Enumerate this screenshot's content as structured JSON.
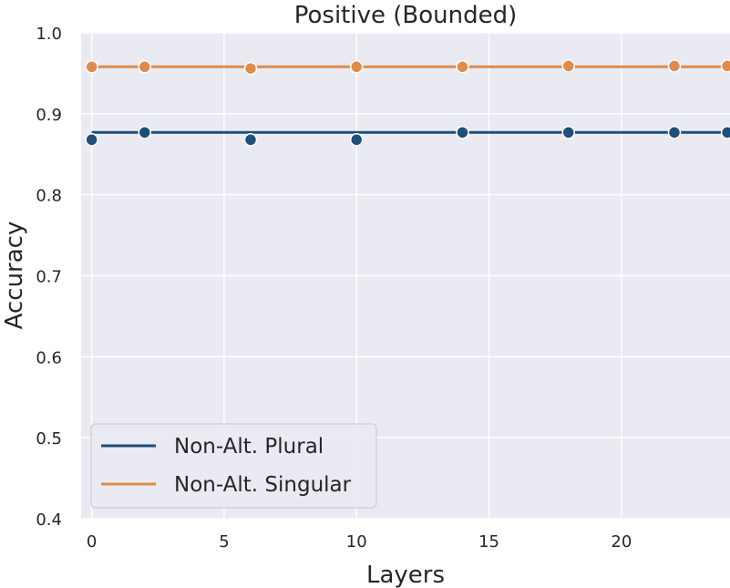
{
  "chart_data": {
    "type": "line",
    "title": "Positive (Bounded)",
    "xlabel": "Layers",
    "ylabel": "Accuracy",
    "xlim": [
      -0.4,
      24.1
    ],
    "ylim": [
      0.4,
      1.0
    ],
    "xticks": [
      0,
      5,
      10,
      15,
      20
    ],
    "xtick_labels": [
      "0",
      "5",
      "10",
      "15",
      "20"
    ],
    "yticks": [
      0.4,
      0.5,
      0.6,
      0.7,
      0.8,
      0.9,
      1.0
    ],
    "ytick_labels": [
      "0.4",
      "0.5",
      "0.6",
      "0.7",
      "0.8",
      "0.9",
      "1.0"
    ],
    "grid": true,
    "background": "#eaeaf2",
    "legend_position": "lower-left",
    "series": [
      {
        "name": "Non-Alt. Plural",
        "color": "#1f4e79",
        "line_value": 0.877,
        "x": [
          0,
          2,
          6,
          10,
          14,
          18,
          22,
          24
        ],
        "y": [
          0.868,
          0.877,
          0.868,
          0.868,
          0.877,
          0.877,
          0.877,
          0.877
        ]
      },
      {
        "name": "Non-Alt. Singular",
        "color": "#e08a4b",
        "line_value": 0.958,
        "x": [
          0,
          2,
          6,
          10,
          14,
          18,
          22,
          24
        ],
        "y": [
          0.958,
          0.958,
          0.956,
          0.958,
          0.958,
          0.959,
          0.959,
          0.959
        ]
      }
    ]
  }
}
